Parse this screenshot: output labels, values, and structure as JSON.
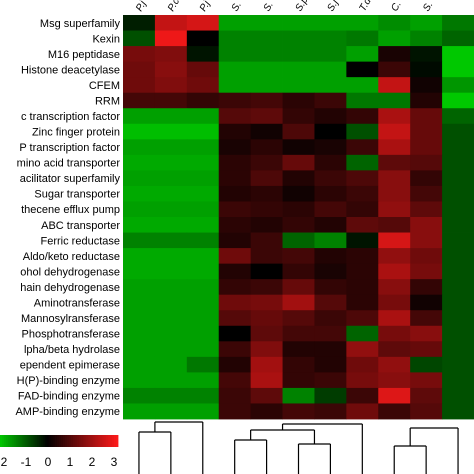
{
  "chart_data": {
    "type": "heatmap",
    "columns": [
      "P.j",
      "P.c",
      "P.j",
      "S.",
      "S.",
      "S.p",
      "S.j",
      "T.d",
      "C.",
      "S.",
      ""
    ],
    "rows": [
      "Msg superfamily",
      "Kexin",
      "M16 peptidase",
      "Histone deacetylase",
      "CFEM",
      "RRM",
      "c transcription factor",
      "Zinc finger protein",
      "P transcription factor",
      "mino acid transporter",
      "acilitator superfamily",
      "Sugar transporter",
      "thecene efflux pump",
      "ABC transporter",
      "Ferric reductase",
      "Aldo/keto reductase",
      "ohol dehydrogenase",
      "hain dehydrogenase",
      "Aminotransferase",
      "Mannosylransferase",
      "Phosphotransferase",
      "lpha/beta hydrolase",
      "ependent epimerase",
      "H(P)-binding enzyme",
      "FAD-binding enzyme",
      "AMP-binding enzyme"
    ],
    "values": [
      [
        -0.3,
        2.3,
        2.5,
        -1.6,
        -1.6,
        -1.6,
        -1.6,
        -1.6,
        -1.4,
        -1.6,
        -1.2
      ],
      [
        -0.8,
        2.8,
        0.0,
        -1.3,
        -1.3,
        -1.3,
        -1.3,
        -1.2,
        -1.6,
        -1.3,
        -1.0
      ],
      [
        1.4,
        1.5,
        -0.2,
        -1.3,
        -1.3,
        -1.3,
        -1.3,
        -1.6,
        0.3,
        -0.2,
        -2.0
      ],
      [
        1.3,
        1.6,
        1.2,
        -1.6,
        -1.6,
        -1.6,
        -1.6,
        0.0,
        0.7,
        -0.1,
        -2.0
      ],
      [
        1.3,
        1.5,
        1.3,
        -1.6,
        -1.6,
        -1.6,
        -1.6,
        -1.6,
        2.3,
        0.2,
        -1.5
      ],
      [
        0.8,
        0.8,
        0.6,
        0.7,
        0.8,
        0.5,
        0.7,
        -1.2,
        -1.2,
        0.4,
        -2.2
      ],
      [
        -1.6,
        -1.6,
        -1.6,
        1.0,
        1.1,
        0.6,
        0.4,
        0.6,
        2.0,
        1.2,
        -1.0
      ],
      [
        -1.9,
        -1.9,
        -1.9,
        0.4,
        0.2,
        0.9,
        0.0,
        -0.8,
        2.3,
        1.2,
        -0.8
      ],
      [
        -1.6,
        -1.6,
        -1.6,
        0.3,
        0.5,
        0.2,
        0.3,
        0.7,
        2.0,
        1.2,
        -0.8
      ],
      [
        -1.7,
        -1.7,
        -1.7,
        0.5,
        0.7,
        1.2,
        0.5,
        -1.0,
        1.1,
        1.0,
        -0.8
      ],
      [
        -1.6,
        -1.6,
        -1.6,
        0.5,
        0.9,
        0.4,
        0.7,
        0.9,
        1.6,
        0.6,
        -0.8
      ],
      [
        -1.7,
        -1.7,
        -1.7,
        0.4,
        0.5,
        0.2,
        0.5,
        0.7,
        1.6,
        0.8,
        -0.8
      ],
      [
        -1.6,
        -1.6,
        -1.6,
        0.7,
        0.6,
        0.5,
        0.8,
        0.6,
        1.7,
        1.1,
        -0.8
      ],
      [
        -1.7,
        -1.7,
        -1.7,
        0.5,
        0.4,
        0.6,
        0.4,
        1.1,
        1.0,
        1.6,
        -0.8
      ],
      [
        -1.3,
        -1.3,
        -1.3,
        0.4,
        0.7,
        -1.0,
        -1.3,
        -0.2,
        2.5,
        1.6,
        -0.8
      ],
      [
        -1.7,
        -1.7,
        -1.7,
        1.3,
        0.7,
        0.8,
        0.4,
        0.5,
        1.7,
        1.3,
        -0.8
      ],
      [
        -1.7,
        -1.7,
        -1.7,
        0.4,
        0.0,
        0.6,
        0.3,
        0.5,
        2.0,
        1.4,
        -0.8
      ],
      [
        -1.6,
        -1.6,
        -1.6,
        0.6,
        0.7,
        1.2,
        0.6,
        0.5,
        1.6,
        0.6,
        -0.8
      ],
      [
        -1.6,
        -1.6,
        -1.6,
        1.3,
        1.4,
        1.9,
        1.0,
        0.5,
        1.4,
        0.2,
        -0.8
      ],
      [
        -1.6,
        -1.6,
        -1.6,
        1.0,
        1.2,
        1.0,
        0.7,
        0.9,
        2.0,
        0.8,
        -0.8
      ],
      [
        -1.6,
        -1.6,
        -1.6,
        0.0,
        1.1,
        0.8,
        0.8,
        -1.0,
        1.4,
        1.6,
        -0.8
      ],
      [
        -1.6,
        -1.6,
        -1.6,
        0.7,
        1.5,
        0.4,
        0.4,
        1.7,
        1.1,
        1.2,
        -0.8
      ],
      [
        -1.6,
        -1.6,
        -1.2,
        0.4,
        1.9,
        0.6,
        0.4,
        1.3,
        1.7,
        -0.7,
        -0.8
      ],
      [
        -1.6,
        -1.6,
        -1.6,
        0.8,
        2.0,
        0.6,
        0.7,
        1.4,
        1.6,
        1.4,
        -0.8
      ],
      [
        -1.3,
        -1.3,
        -1.3,
        0.7,
        1.1,
        -1.3,
        -0.6,
        0.7,
        2.6,
        1.1,
        -0.8
      ],
      [
        -1.6,
        -1.6,
        -1.6,
        0.7,
        0.5,
        0.8,
        0.7,
        1.3,
        0.7,
        1.0,
        -0.8
      ]
    ],
    "color_scale": {
      "range": [
        -2,
        3
      ],
      "low_color": "#00c800",
      "mid_color": "#000000",
      "high_color": "#ff1a1a",
      "ticks": [
        "2",
        "-1",
        "0",
        "1",
        "2",
        "3"
      ]
    }
  }
}
